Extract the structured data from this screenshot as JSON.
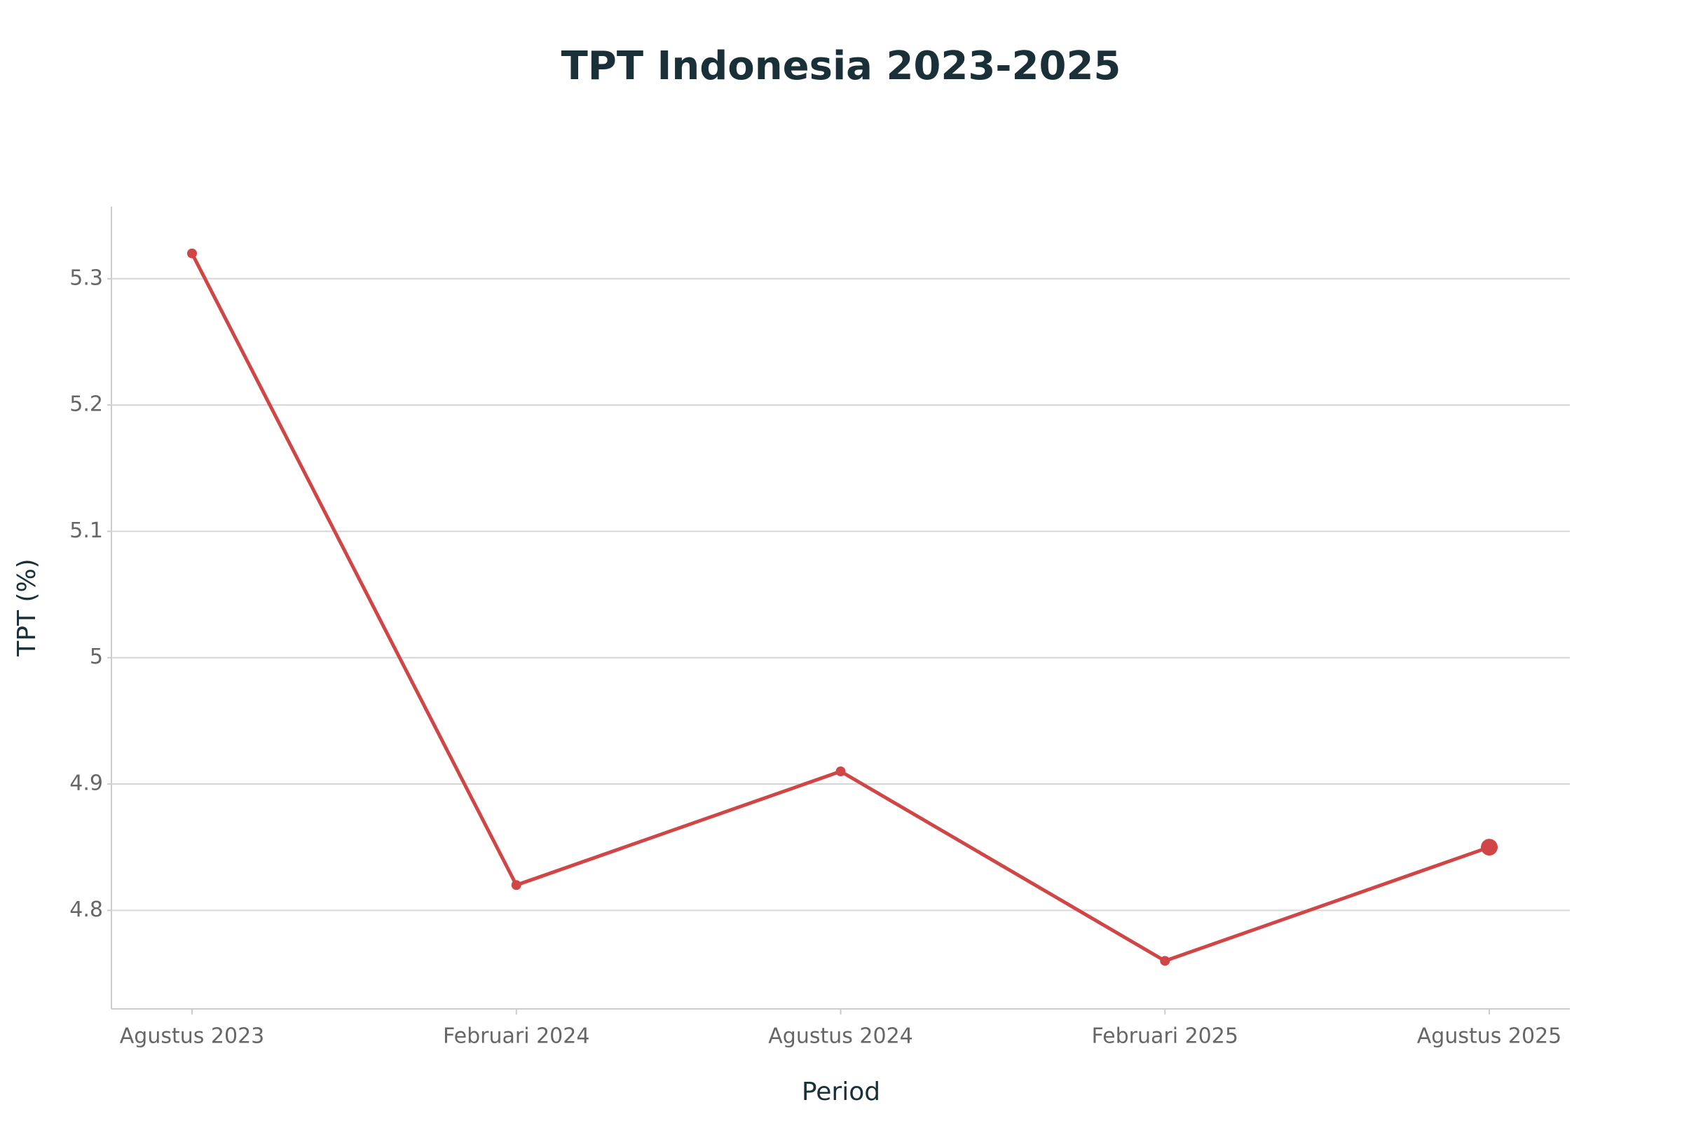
{
  "chart_data": {
    "type": "line",
    "title": "TPT Indonesia 2023-2025",
    "x_label": "Period",
    "y_label": "TPT (%)",
    "categories": [
      "Agustus 2023",
      "Februari 2024",
      "Agustus 2024",
      "Februari 2025",
      "Agustus 2025"
    ],
    "series": [
      {
        "name": "TPT",
        "color": "#d04545",
        "values": [
          5.32,
          4.82,
          4.91,
          4.76,
          4.85
        ]
      }
    ],
    "ylim": [
      4.722,
      5.357
    ],
    "yticks": [
      4.8,
      4.9,
      5,
      5.1,
      5.2,
      5.3
    ],
    "grid": true
  }
}
